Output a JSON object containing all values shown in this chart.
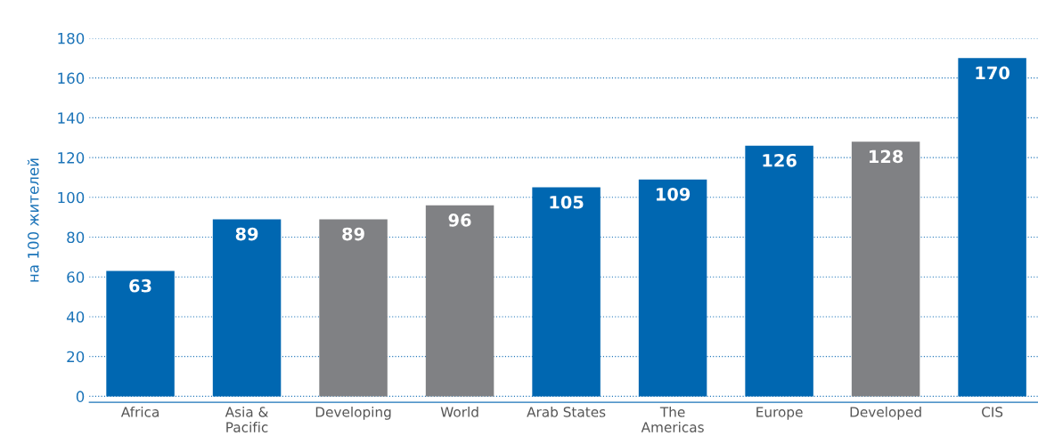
{
  "chart_data": {
    "type": "bar",
    "ylabel": "на 100 жителей",
    "categories": [
      "Africa",
      "Asia &\nPacific",
      "Developing",
      "World",
      "Arab States",
      "The\nAmericas",
      "Europe",
      "Developed",
      "CIS"
    ],
    "values": [
      63,
      89,
      89,
      96,
      105,
      109,
      126,
      128,
      170
    ],
    "colors": [
      "#0067b1",
      "#0067b1",
      "#808184",
      "#808184",
      "#0067b1",
      "#0067b1",
      "#0067b1",
      "#808184",
      "#0067b1"
    ],
    "ylim": [
      -3,
      180
    ],
    "yticks": [
      0,
      20,
      40,
      60,
      80,
      100,
      120,
      140,
      160,
      180
    ],
    "grid": "y",
    "data_labels": true
  }
}
